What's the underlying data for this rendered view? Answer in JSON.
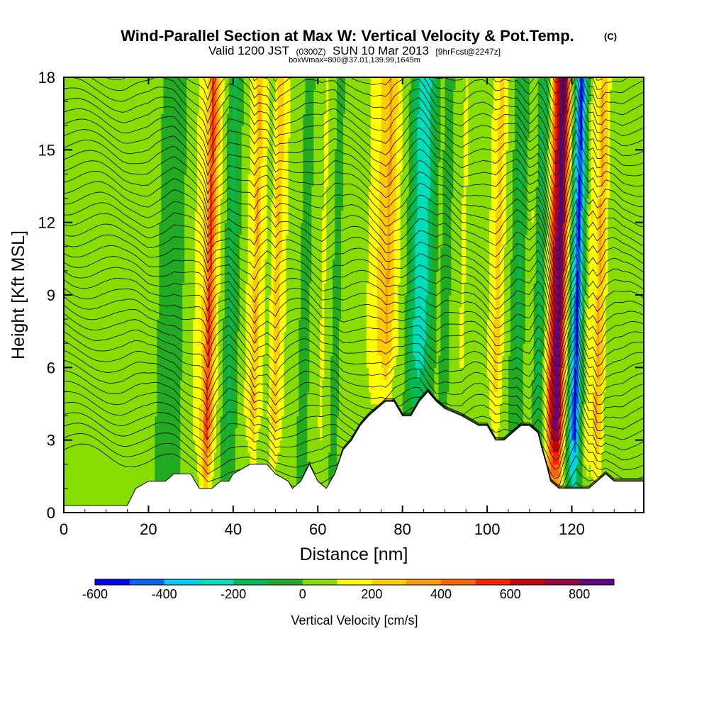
{
  "header": {
    "title": "Wind-Parallel Section at Max W: Vertical Velocity & Pot.Temp.",
    "copyright": "(C)",
    "valid_main": "Valid 1200 JST",
    "valid_utc": "(0300Z)",
    "valid_date": "SUN 10 Mar 2013",
    "forecast": "[9hrFcst@2247z]",
    "box_info": "boxWmax=800@37.01,139.99,1645m"
  },
  "chart_data": {
    "type": "heatmap",
    "xlabel": "Distance [nm]",
    "ylabel": "Height [Kft MSL]",
    "xlim": [
      0,
      137
    ],
    "ylim": [
      0,
      18
    ],
    "x_ticks": [
      0,
      20,
      40,
      60,
      80,
      100,
      120
    ],
    "y_ticks": [
      0,
      3,
      6,
      9,
      12,
      15,
      18
    ],
    "colorbar": {
      "title": "Vertical Velocity [cm/s]",
      "levels": [
        -600,
        -500,
        -400,
        -300,
        -200,
        -100,
        0,
        100,
        200,
        300,
        400,
        500,
        600,
        700,
        800,
        900
      ],
      "tick_labels": [
        "-600",
        "-400",
        "-200",
        "0",
        "200",
        "400",
        "600",
        "800"
      ],
      "colors": [
        "#0000ff",
        "#0066ff",
        "#00ccff",
        "#00ddbb",
        "#00bb55",
        "#22aa22",
        "#88dd00",
        "#ffff00",
        "#ffcc00",
        "#ff9900",
        "#ff6600",
        "#ff2200",
        "#cc0000",
        "#990044",
        "#660088"
      ]
    },
    "columns": [
      {
        "x": 0,
        "w": 8
      },
      {
        "x": 2,
        "w": 20
      },
      {
        "x": 5,
        "w": 10
      },
      {
        "x": 9,
        "w": 0
      },
      {
        "x": 12,
        "w": 30
      },
      {
        "x": 14,
        "w": 60
      },
      {
        "x": 17,
        "w": 30
      },
      {
        "x": 20,
        "w": 70
      },
      {
        "x": 22,
        "w": 0
      },
      {
        "x": 24,
        "w": -40
      },
      {
        "x": 26,
        "w": -100
      },
      {
        "x": 28,
        "w": 10
      },
      {
        "x": 30,
        "w": 80
      },
      {
        "x": 32,
        "w": 160
      },
      {
        "x": 33,
        "w": 260
      },
      {
        "x": 34,
        "w": 560
      },
      {
        "x": 35,
        "w": 320
      },
      {
        "x": 36,
        "w": 140
      },
      {
        "x": 37,
        "w": 40
      },
      {
        "x": 38,
        "w": -40
      },
      {
        "x": 39,
        "w": -140
      },
      {
        "x": 40,
        "w": -70
      },
      {
        "x": 42,
        "w": 60
      },
      {
        "x": 44,
        "w": 160
      },
      {
        "x": 45,
        "w": 320
      },
      {
        "x": 46,
        "w": 160
      },
      {
        "x": 48,
        "w": 60
      },
      {
        "x": 49,
        "w": 160
      },
      {
        "x": 50,
        "w": 300
      },
      {
        "x": 51,
        "w": 160
      },
      {
        "x": 53,
        "w": 50
      },
      {
        "x": 55,
        "w": 10
      },
      {
        "x": 57,
        "w": -30
      },
      {
        "x": 59,
        "w": 40
      },
      {
        "x": 61,
        "w": 120
      },
      {
        "x": 62,
        "w": 60
      },
      {
        "x": 64,
        "w": -40
      },
      {
        "x": 66,
        "w": 40
      },
      {
        "x": 68,
        "w": 30
      },
      {
        "x": 70,
        "w": 60
      },
      {
        "x": 72,
        "w": 120
      },
      {
        "x": 73,
        "w": 180
      },
      {
        "x": 75,
        "w": 240
      },
      {
        "x": 76,
        "w": 320
      },
      {
        "x": 77,
        "w": 260
      },
      {
        "x": 78,
        "w": 140
      },
      {
        "x": 80,
        "w": 40
      },
      {
        "x": 81,
        "w": -60
      },
      {
        "x": 82,
        "w": -160
      },
      {
        "x": 83,
        "w": -240
      },
      {
        "x": 84,
        "w": -300
      },
      {
        "x": 85,
        "w": -240
      },
      {
        "x": 86,
        "w": -140
      },
      {
        "x": 87,
        "w": -60
      },
      {
        "x": 88,
        "w": 20
      },
      {
        "x": 90,
        "w": -40
      },
      {
        "x": 92,
        "w": 50
      },
      {
        "x": 94,
        "w": 120
      },
      {
        "x": 95,
        "w": 60
      },
      {
        "x": 97,
        "w": 10
      },
      {
        "x": 99,
        "w": 40
      },
      {
        "x": 101,
        "w": 160
      },
      {
        "x": 102,
        "w": 240
      },
      {
        "x": 103,
        "w": 180
      },
      {
        "x": 104,
        "w": 60
      },
      {
        "x": 106,
        "w": -40
      },
      {
        "x": 107,
        "w": -120
      },
      {
        "x": 108,
        "w": -60
      },
      {
        "x": 109,
        "w": 40
      },
      {
        "x": 110,
        "w": 100
      },
      {
        "x": 111,
        "w": -20
      },
      {
        "x": 112,
        "w": -160
      },
      {
        "x": 113,
        "w": -40
      },
      {
        "x": 114,
        "w": 200
      },
      {
        "x": 115,
        "w": 560
      },
      {
        "x": 116,
        "w": 800
      },
      {
        "x": 117,
        "w": 800
      },
      {
        "x": 118,
        "w": 400
      },
      {
        "x": 119,
        "w": 20
      },
      {
        "x": 120,
        "w": -300
      },
      {
        "x": 121,
        "w": -560
      },
      {
        "x": 122,
        "w": -200
      },
      {
        "x": 123,
        "w": 20
      },
      {
        "x": 124,
        "w": 200
      },
      {
        "x": 125,
        "w": 120
      },
      {
        "x": 126,
        "w": 320
      },
      {
        "x": 127,
        "w": 260
      },
      {
        "x": 128,
        "w": 80
      },
      {
        "x": 130,
        "w": 30
      },
      {
        "x": 132,
        "w": 80
      },
      {
        "x": 134,
        "w": 40
      },
      {
        "x": 137,
        "w": 20
      }
    ],
    "terrain": [
      {
        "x": 0,
        "h": 0.3
      },
      {
        "x": 15,
        "h": 0.3
      },
      {
        "x": 17,
        "h": 1.0
      },
      {
        "x": 20,
        "h": 1.3
      },
      {
        "x": 24,
        "h": 1.3
      },
      {
        "x": 26,
        "h": 1.6
      },
      {
        "x": 30,
        "h": 1.6
      },
      {
        "x": 32,
        "h": 1.0
      },
      {
        "x": 35,
        "h": 1.0
      },
      {
        "x": 37,
        "h": 1.3
      },
      {
        "x": 39,
        "h": 1.3
      },
      {
        "x": 40,
        "h": 1.6
      },
      {
        "x": 44,
        "h": 2.0
      },
      {
        "x": 48,
        "h": 2.0
      },
      {
        "x": 50,
        "h": 1.6
      },
      {
        "x": 53,
        "h": 1.3
      },
      {
        "x": 54,
        "h": 1.0
      },
      {
        "x": 56,
        "h": 1.3
      },
      {
        "x": 58,
        "h": 2.0
      },
      {
        "x": 60,
        "h": 1.3
      },
      {
        "x": 62,
        "h": 1.0
      },
      {
        "x": 64,
        "h": 1.6
      },
      {
        "x": 66,
        "h": 2.6
      },
      {
        "x": 68,
        "h": 3.0
      },
      {
        "x": 70,
        "h": 3.6
      },
      {
        "x": 72,
        "h": 4.0
      },
      {
        "x": 74,
        "h": 4.3
      },
      {
        "x": 76,
        "h": 4.6
      },
      {
        "x": 78,
        "h": 4.6
      },
      {
        "x": 80,
        "h": 4.0
      },
      {
        "x": 82,
        "h": 4.0
      },
      {
        "x": 84,
        "h": 4.6
      },
      {
        "x": 86,
        "h": 5.0
      },
      {
        "x": 88,
        "h": 4.6
      },
      {
        "x": 90,
        "h": 4.3
      },
      {
        "x": 94,
        "h": 4.0
      },
      {
        "x": 98,
        "h": 3.6
      },
      {
        "x": 100,
        "h": 3.6
      },
      {
        "x": 102,
        "h": 3.0
      },
      {
        "x": 104,
        "h": 3.0
      },
      {
        "x": 106,
        "h": 3.3
      },
      {
        "x": 108,
        "h": 3.6
      },
      {
        "x": 110,
        "h": 3.6
      },
      {
        "x": 112,
        "h": 3.3
      },
      {
        "x": 113,
        "h": 2.6
      },
      {
        "x": 114,
        "h": 2.0
      },
      {
        "x": 115,
        "h": 1.3
      },
      {
        "x": 117,
        "h": 1.0
      },
      {
        "x": 120,
        "h": 1.0
      },
      {
        "x": 124,
        "h": 1.0
      },
      {
        "x": 126,
        "h": 1.3
      },
      {
        "x": 128,
        "h": 1.6
      },
      {
        "x": 130,
        "h": 1.3
      },
      {
        "x": 137,
        "h": 1.3
      }
    ]
  }
}
